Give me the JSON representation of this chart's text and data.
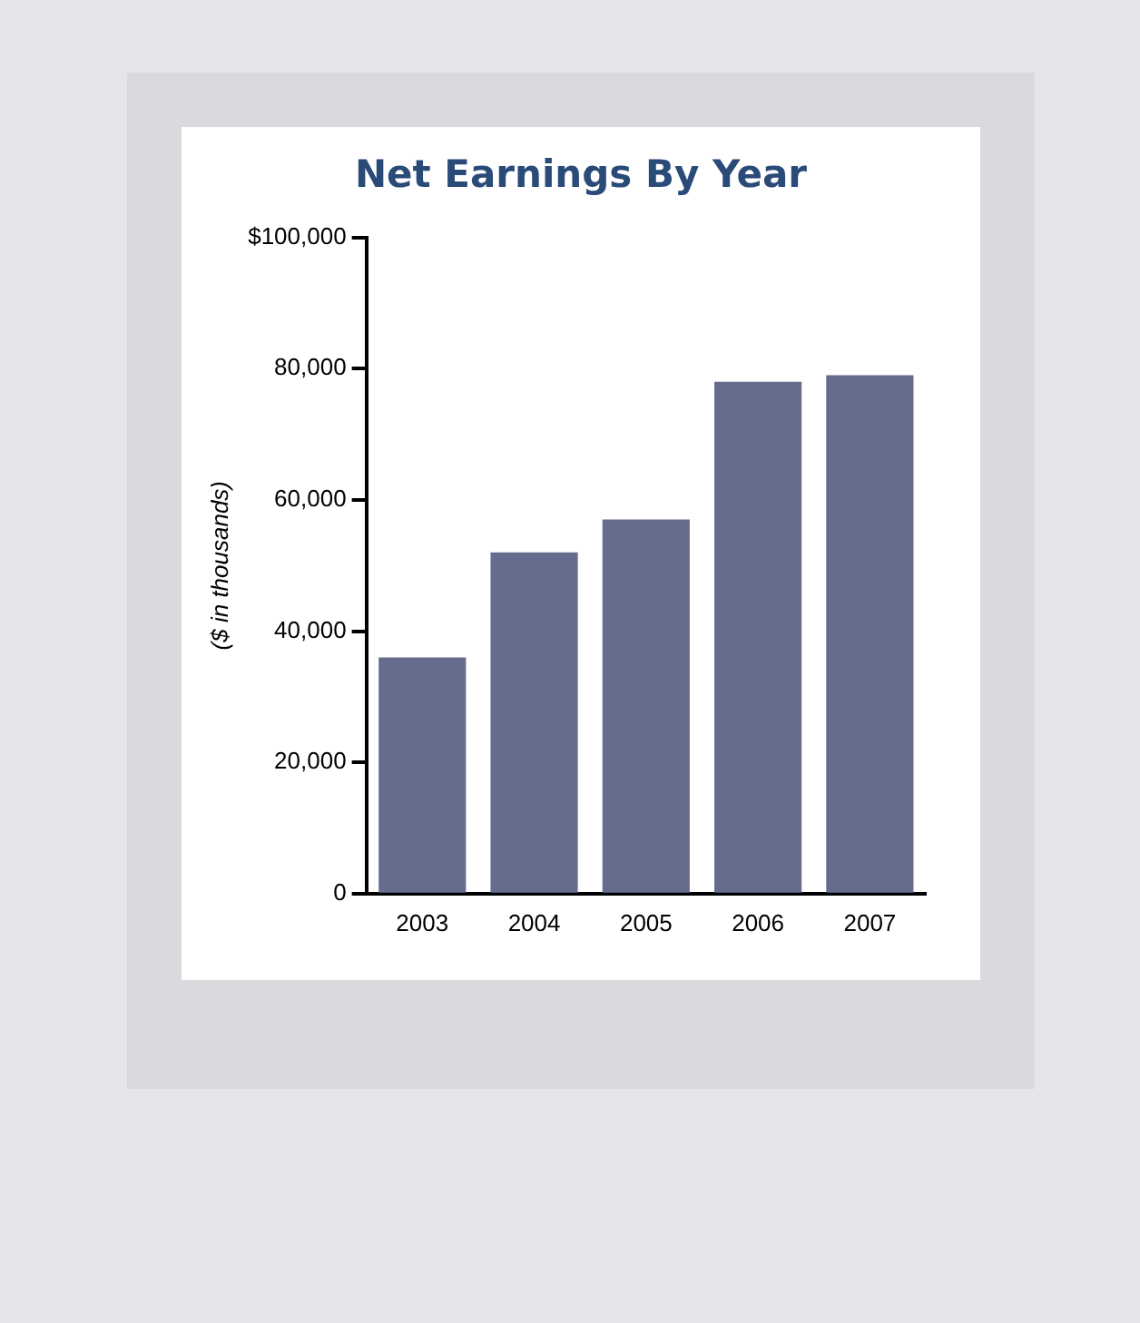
{
  "chart_data": {
    "type": "bar",
    "title": "Net Earnings By Year",
    "ylabel": "($ in thousands)",
    "categories": [
      "2003",
      "2004",
      "2005",
      "2006",
      "2007"
    ],
    "values": [
      36000,
      52000,
      57000,
      78000,
      79000
    ],
    "color": "#666c8e",
    "ylim": [
      0,
      100000
    ],
    "yticks": [
      0,
      {
        "value": 20000,
        "label": "20,000"
      },
      {
        "value": 40000,
        "label": "40,000"
      },
      {
        "value": 60000,
        "label": "60,000"
      },
      {
        "value": 80000,
        "label": "80,000"
      },
      {
        "value": 100000,
        "label": "$100,000"
      }
    ],
    "grid": false,
    "legend": false
  }
}
